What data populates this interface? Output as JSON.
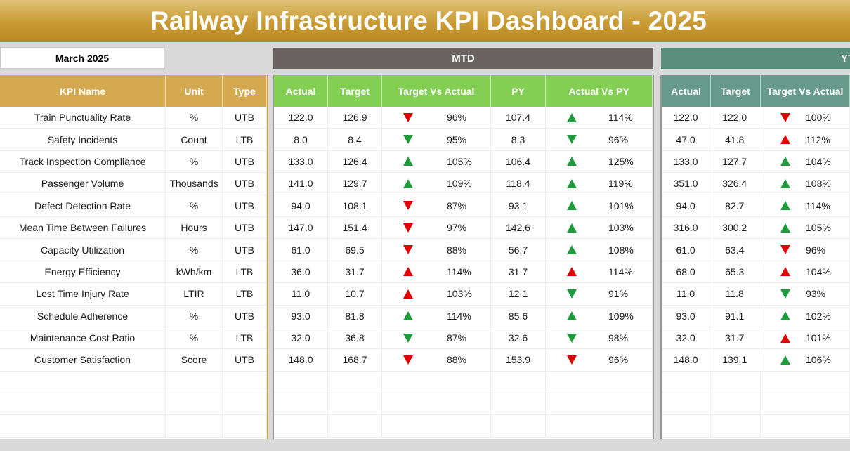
{
  "title": "Railway Infrastructure KPI Dashboard - 2025",
  "month": "March 2025",
  "sections": {
    "mtd": "MTD",
    "ytd": "YTD"
  },
  "headers": {
    "kpi": [
      "KPI Name",
      "Unit",
      "Type"
    ],
    "mtd": [
      "Actual",
      "Target",
      "Target Vs Actual",
      "PY",
      "Actual Vs PY"
    ],
    "ytd": [
      "Actual",
      "Target",
      "Target Vs Actual"
    ]
  },
  "colors": {
    "banner": "#c99a33",
    "kpi_header": "#d4a950",
    "mtd_header": "#82cf54",
    "ytd_header": "#669a8a",
    "mtd_bar": "#6b6262",
    "ytd_bar": "#5b8e7c",
    "up_green": "#1e9b3d",
    "down_red": "#e00000"
  },
  "rows": [
    {
      "name": "Train Punctuality Rate",
      "unit": "%",
      "type": "UTB",
      "mtd": {
        "actual": "122.0",
        "target": "126.9",
        "tva_pct": "96%",
        "tva_icon": "down-red",
        "py": "107.4",
        "avp_pct": "114%",
        "avp_icon": "up-green"
      },
      "ytd": {
        "actual": "122.0",
        "target": "122.0",
        "tva_pct": "100%",
        "tva_icon": "down-red"
      }
    },
    {
      "name": "Safety Incidents",
      "unit": "Count",
      "type": "LTB",
      "mtd": {
        "actual": "8.0",
        "target": "8.4",
        "tva_pct": "95%",
        "tva_icon": "down-green",
        "py": "8.3",
        "avp_pct": "96%",
        "avp_icon": "down-green"
      },
      "ytd": {
        "actual": "47.0",
        "target": "41.8",
        "tva_pct": "112%",
        "tva_icon": "up-red"
      }
    },
    {
      "name": "Track Inspection Compliance",
      "unit": "%",
      "type": "UTB",
      "mtd": {
        "actual": "133.0",
        "target": "126.4",
        "tva_pct": "105%",
        "tva_icon": "up-green",
        "py": "106.4",
        "avp_pct": "125%",
        "avp_icon": "up-green"
      },
      "ytd": {
        "actual": "133.0",
        "target": "127.7",
        "tva_pct": "104%",
        "tva_icon": "up-green"
      }
    },
    {
      "name": "Passenger Volume",
      "unit": "Thousands",
      "type": "UTB",
      "mtd": {
        "actual": "141.0",
        "target": "129.7",
        "tva_pct": "109%",
        "tva_icon": "up-green",
        "py": "118.4",
        "avp_pct": "119%",
        "avp_icon": "up-green"
      },
      "ytd": {
        "actual": "351.0",
        "target": "326.4",
        "tva_pct": "108%",
        "tva_icon": "up-green"
      }
    },
    {
      "name": "Defect Detection Rate",
      "unit": "%",
      "type": "UTB",
      "mtd": {
        "actual": "94.0",
        "target": "108.1",
        "tva_pct": "87%",
        "tva_icon": "down-red",
        "py": "93.1",
        "avp_pct": "101%",
        "avp_icon": "up-green"
      },
      "ytd": {
        "actual": "94.0",
        "target": "82.7",
        "tva_pct": "114%",
        "tva_icon": "up-green"
      }
    },
    {
      "name": "Mean Time Between Failures",
      "unit": "Hours",
      "type": "UTB",
      "mtd": {
        "actual": "147.0",
        "target": "151.4",
        "tva_pct": "97%",
        "tva_icon": "down-red",
        "py": "142.6",
        "avp_pct": "103%",
        "avp_icon": "up-green"
      },
      "ytd": {
        "actual": "316.0",
        "target": "300.2",
        "tva_pct": "105%",
        "tva_icon": "up-green"
      }
    },
    {
      "name": "Capacity Utilization",
      "unit": "%",
      "type": "UTB",
      "mtd": {
        "actual": "61.0",
        "target": "69.5",
        "tva_pct": "88%",
        "tva_icon": "down-red",
        "py": "56.7",
        "avp_pct": "108%",
        "avp_icon": "up-green"
      },
      "ytd": {
        "actual": "61.0",
        "target": "63.4",
        "tva_pct": "96%",
        "tva_icon": "down-red"
      }
    },
    {
      "name": "Energy Efficiency",
      "unit": "kWh/km",
      "type": "LTB",
      "mtd": {
        "actual": "36.0",
        "target": "31.7",
        "tva_pct": "114%",
        "tva_icon": "up-red",
        "py": "31.7",
        "avp_pct": "114%",
        "avp_icon": "up-red"
      },
      "ytd": {
        "actual": "68.0",
        "target": "65.3",
        "tva_pct": "104%",
        "tva_icon": "up-red"
      }
    },
    {
      "name": "Lost Time Injury Rate",
      "unit": "LTIR",
      "type": "LTB",
      "mtd": {
        "actual": "11.0",
        "target": "10.7",
        "tva_pct": "103%",
        "tva_icon": "up-red",
        "py": "12.1",
        "avp_pct": "91%",
        "avp_icon": "down-green"
      },
      "ytd": {
        "actual": "11.0",
        "target": "11.8",
        "tva_pct": "93%",
        "tva_icon": "down-green"
      }
    },
    {
      "name": "Schedule Adherence",
      "unit": "%",
      "type": "UTB",
      "mtd": {
        "actual": "93.0",
        "target": "81.8",
        "tva_pct": "114%",
        "tva_icon": "up-green",
        "py": "85.6",
        "avp_pct": "109%",
        "avp_icon": "up-green"
      },
      "ytd": {
        "actual": "93.0",
        "target": "91.1",
        "tva_pct": "102%",
        "tva_icon": "up-green"
      }
    },
    {
      "name": "Maintenance Cost Ratio",
      "unit": "%",
      "type": "LTB",
      "mtd": {
        "actual": "32.0",
        "target": "36.8",
        "tva_pct": "87%",
        "tva_icon": "down-green",
        "py": "32.6",
        "avp_pct": "98%",
        "avp_icon": "down-green"
      },
      "ytd": {
        "actual": "32.0",
        "target": "31.7",
        "tva_pct": "101%",
        "tva_icon": "up-red"
      }
    },
    {
      "name": "Customer Satisfaction",
      "unit": "Score",
      "type": "UTB",
      "mtd": {
        "actual": "148.0",
        "target": "168.7",
        "tva_pct": "88%",
        "tva_icon": "down-red",
        "py": "153.9",
        "avp_pct": "96%",
        "avp_icon": "down-red"
      },
      "ytd": {
        "actual": "148.0",
        "target": "139.1",
        "tva_pct": "106%",
        "tva_icon": "up-green"
      }
    }
  ]
}
